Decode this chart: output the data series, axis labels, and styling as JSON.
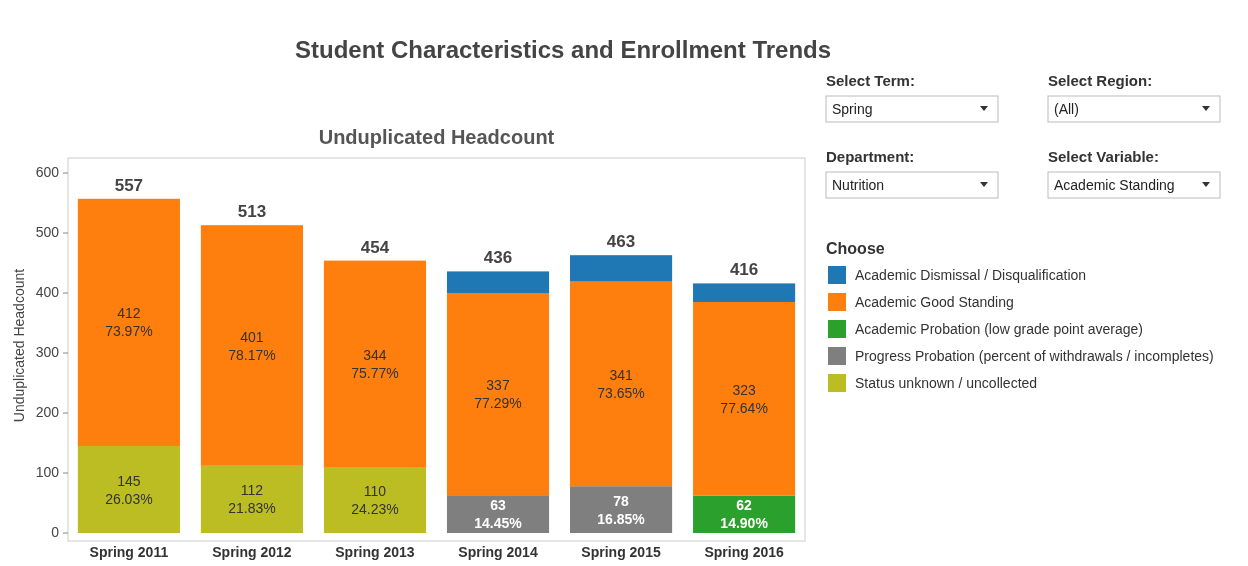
{
  "chart_data": {
    "type": "bar",
    "title": "Student Characteristics and Enrollment Trends",
    "subtitle": "Unduplicated Headcount",
    "ylabel": "Unduplicated Headcount",
    "legend_title": "Choose",
    "legend": "right",
    "stacked": true,
    "grid": false,
    "categories": [
      "Spring 2011",
      "Spring 2012",
      "Spring 2013",
      "Spring 2014",
      "Spring 2015",
      "Spring 2016"
    ],
    "ylim": [
      0,
      625
    ],
    "yticks": [
      0,
      100,
      200,
      300,
      400,
      500,
      600
    ],
    "series": [
      {
        "name": "Status unknown / uncollected",
        "color": "#bcbd22",
        "values": [
          145,
          112,
          110,
          null,
          null,
          null
        ],
        "value_labels": [
          "145\n26.03%",
          "112\n21.83%",
          "110\n24.23%",
          null,
          null,
          null
        ]
      },
      {
        "name": "Progress Probation (percent of withdrawals / incompletes)",
        "color": "#7f7f7f",
        "values": [
          null,
          null,
          null,
          63,
          78,
          null
        ],
        "value_labels": [
          null,
          null,
          null,
          "63\n14.45%",
          "78\n16.85%",
          null
        ]
      },
      {
        "name": "Academic Probation (low grade point average)",
        "color": "#2ca02c",
        "values": [
          null,
          null,
          null,
          null,
          null,
          62
        ],
        "value_labels": [
          null,
          null,
          null,
          null,
          null,
          "62\n14.90%"
        ]
      },
      {
        "name": "Academic Good Standing",
        "color": "#ff7f0e",
        "values": [
          412,
          401,
          344,
          337,
          341,
          323
        ],
        "value_labels": [
          "412\n73.97%",
          "401\n78.17%",
          "344\n75.77%",
          "337\n77.29%",
          "341\n73.65%",
          "323\n77.64%"
        ]
      },
      {
        "name": "Academic Dismissal / Disqualification",
        "color": "#1f77b4",
        "values": [
          null,
          null,
          null,
          36,
          44,
          31
        ]
      }
    ],
    "totals": [
      "557",
      "513",
      "454",
      "436",
      "463",
      "416"
    ],
    "annotations": [
      "Select Term:",
      "Spring",
      "Select Region:",
      "(All)",
      "Department:",
      "Nutrition",
      "Select Variable:",
      "Academic Standing"
    ]
  }
}
